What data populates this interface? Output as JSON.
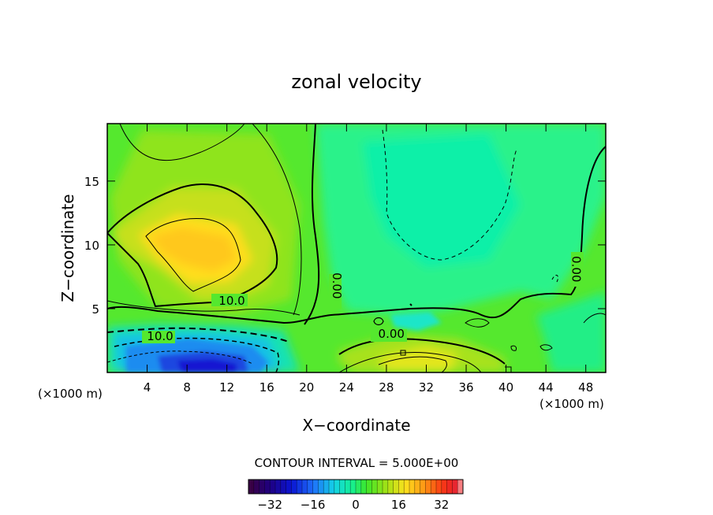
{
  "chart_data": {
    "type": "heatmap",
    "title": "zonal velocity",
    "xlabel": "X−coordinate",
    "ylabel": "Z−coordinate",
    "x_unit_left": "(×1000 m)",
    "x_unit_right": "(×1000 m)",
    "xlim": [
      0,
      50
    ],
    "ylim": [
      0,
      19.5
    ],
    "xticks": [
      4,
      8,
      12,
      16,
      20,
      24,
      28,
      32,
      36,
      40,
      44,
      48
    ],
    "yticks": [
      5,
      10,
      15
    ],
    "contour_interval_label": "CONTOUR INTERVAL = 5.000E+00",
    "colorbar": {
      "range": [
        -40,
        40
      ],
      "ticks": [
        -32,
        -16,
        0,
        16,
        32
      ],
      "tick_labels": [
        "−32",
        "−16",
        "0",
        "16",
        "32"
      ]
    },
    "contour_labels": [
      {
        "text": "10.0",
        "x": 12.5,
        "z": 5.6
      },
      {
        "text": "10.0",
        "x": 5.3,
        "z": 2.8
      },
      {
        "text": "0.00",
        "x": 23.0,
        "z": 6.8
      },
      {
        "text": "0.00",
        "x": 28.5,
        "z": 3.0
      },
      {
        "text": "0.00",
        "x": 47.0,
        "z": 8.1
      }
    ],
    "field_features": [
      {
        "name": "positive jet",
        "x": 8,
        "z": 10,
        "value": 20
      },
      {
        "name": "near-surface negative core",
        "x": 10,
        "z": 1,
        "value": -28
      },
      {
        "name": "low-level positive pocket",
        "x": 31,
        "z": 1,
        "value": 12
      },
      {
        "name": "weak negative region",
        "x": 32,
        "z": 14,
        "value": -4
      }
    ],
    "colors": {
      "background_field": "#55e82e",
      "positive_core": "#ffc81e",
      "negative_core": "#1414d2"
    }
  }
}
